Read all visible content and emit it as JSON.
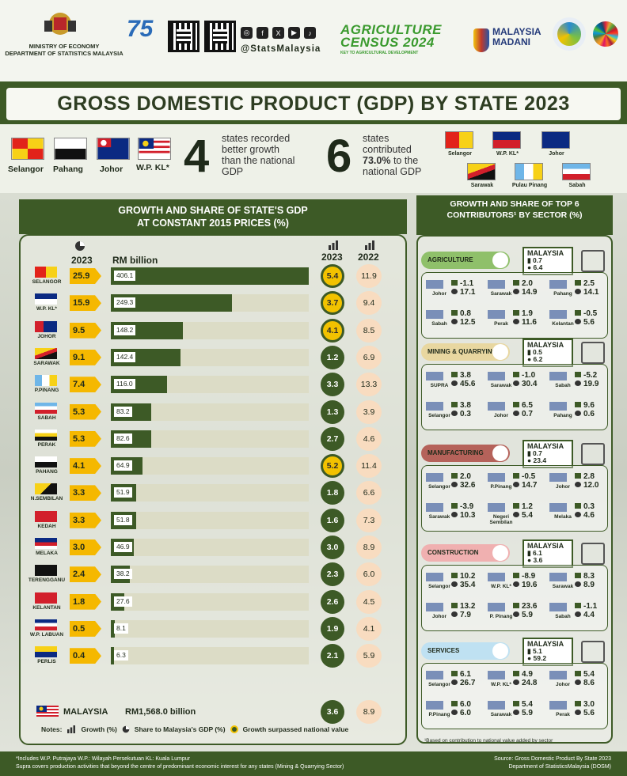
{
  "header": {
    "ministry": "MINISTRY OF ECONOMY",
    "department": "DEPARTMENT OF STATISTICS MALAYSIA",
    "dosm_logo": "75",
    "social_handle": "@StatsMalaysia",
    "census_line1": "AGRICULTURE",
    "census_line2": "CENSUS 2024",
    "census_tagline": "KEY TO AGRICULTURAL DEVELOPMENT",
    "madani_line1": "MALAYSIA",
    "madani_line2": "MADANI",
    "social_icons": [
      "instagram-icon",
      "facebook-icon",
      "x-icon",
      "youtube-icon",
      "tiktok-icon"
    ]
  },
  "title": "GROSS DOMESTIC PRODUCT (GDP) BY STATE 2023",
  "highlights": {
    "flags": [
      "Selangor",
      "Pahang",
      "Johor",
      "W.P. KL*"
    ],
    "better_count": "4",
    "better_text": "states recorded better growth than the national GDP",
    "contrib_count": "6",
    "contrib_text_pre": "states contributed",
    "contrib_pct": "73.0%",
    "contrib_text_post": "to the national GDP",
    "contrib_states": [
      "Selangor",
      "W.P. KL*",
      "Johor",
      "Sarawak",
      "Pulau Pinang",
      "Sabah"
    ]
  },
  "left_panel": {
    "title_line1": "GROWTH AND SHARE OF STATE'S GDP",
    "title_line2": "AT CONSTANT 2015 PRICES (%)",
    "col_share": "2023",
    "col_rm": "RM billion",
    "col_g23": "2023",
    "col_g22": "2022",
    "rows": [
      {
        "name": "SELANGOR",
        "share": "25.9",
        "rm": "406.1",
        "g23": "5.4",
        "g22": "11.9"
      },
      {
        "name": "W.P. KL*",
        "share": "15.9",
        "rm": "249.3",
        "g23": "3.7",
        "g22": "9.4"
      },
      {
        "name": "JOHOR",
        "share": "9.5",
        "rm": "148.2",
        "g23": "4.1",
        "g22": "8.5"
      },
      {
        "name": "SARAWAK",
        "share": "9.1",
        "rm": "142.4",
        "g23": "1.2",
        "g22": "6.9"
      },
      {
        "name": "P.PINANG",
        "share": "7.4",
        "rm": "116.0",
        "g23": "3.3",
        "g22": "13.3"
      },
      {
        "name": "SABAH",
        "share": "5.3",
        "rm": "83.2",
        "g23": "1.3",
        "g22": "3.9"
      },
      {
        "name": "PERAK",
        "share": "5.3",
        "rm": "82.6",
        "g23": "2.7",
        "g22": "4.6"
      },
      {
        "name": "PAHANG",
        "share": "4.1",
        "rm": "64.9",
        "g23": "5.2",
        "g22": "11.4"
      },
      {
        "name": "N.SEMBILAN",
        "share": "3.3",
        "rm": "51.9",
        "g23": "1.8",
        "g22": "6.6"
      },
      {
        "name": "KEDAH",
        "share": "3.3",
        "rm": "51.8",
        "g23": "1.6",
        "g22": "7.3"
      },
      {
        "name": "MELAKA",
        "share": "3.0",
        "rm": "46.9",
        "g23": "3.0",
        "g22": "8.9"
      },
      {
        "name": "TERENGGANU",
        "share": "2.4",
        "rm": "38.2",
        "g23": "2.3",
        "g22": "6.0"
      },
      {
        "name": "KELANTAN",
        "share": "1.8",
        "rm": "27.6",
        "g23": "2.6",
        "g22": "4.5"
      },
      {
        "name": "W.P. LABUAN",
        "share": "0.5",
        "rm": "8.1",
        "g23": "1.9",
        "g22": "4.1"
      },
      {
        "name": "PERLIS",
        "share": "0.4",
        "rm": "6.3",
        "g23": "2.1",
        "g22": "5.9"
      }
    ],
    "malaysia_label": "MALAYSIA",
    "malaysia_total": "RM1,568.0  billion",
    "malaysia_g23": "3.6",
    "malaysia_g22": "8.9",
    "notes_label": "Notes:",
    "note_growth": "Growth (%)",
    "note_share": "Share to Malaysia's GDP (%)",
    "note_surpassed": "Growth surpassed national value"
  },
  "right_panel": {
    "title": "GROWTH AND SHARE OF TOP 6 CONTRIBUTORS¹ BY SECTOR (%)",
    "footnote": "¹Based on contribution to national value added by sector",
    "sectors": [
      {
        "name": "AGRICULTURE",
        "color": "#8fc06a",
        "my_label": "MALAYSIA",
        "my_g": "0.7",
        "my_s": "6.4",
        "states": [
          [
            "Johor",
            "-1.1",
            "17.1"
          ],
          [
            "Sarawak",
            "2.0",
            "14.9"
          ],
          [
            "Pahang",
            "2.5",
            "14.1"
          ],
          [
            "Sabah",
            "0.8",
            "12.5"
          ],
          [
            "Perak",
            "1.9",
            "11.6"
          ],
          [
            "Kelantan",
            "-0.5",
            "5.6"
          ]
        ]
      },
      {
        "name": "MINING & QUARRYING",
        "color": "#e8d7a0",
        "my_label": "MALAYSIA",
        "my_g": "0.5",
        "my_s": "6.2",
        "states": [
          [
            "SUPRA",
            "3.8",
            "45.6"
          ],
          [
            "Sarawak",
            "-1.0",
            "30.4"
          ],
          [
            "Sabah",
            "-5.2",
            "19.9"
          ],
          [
            "Selangor",
            "3.8",
            "0.3"
          ],
          [
            "Johor",
            "6.5",
            "0.7"
          ],
          [
            "Pahang",
            "9.6",
            "0.6"
          ]
        ]
      },
      {
        "name": "MANUFACTURING",
        "color": "#b5625a",
        "my_label": "MALAYSIA",
        "my_g": "0.7",
        "my_s": "23.4",
        "states": [
          [
            "Selangor",
            "2.0",
            "32.6"
          ],
          [
            "P.Pinang",
            "-0.5",
            "14.7"
          ],
          [
            "Johor",
            "2.8",
            "12.0"
          ],
          [
            "Sarawak",
            "-3.9",
            "10.3"
          ],
          [
            "Negeri Sembilan",
            "1.2",
            "5.4"
          ],
          [
            "Melaka",
            "0.3",
            "4.6"
          ]
        ]
      },
      {
        "name": "CONSTRUCTION",
        "color": "#f0b0b0",
        "my_label": "MALAYSIA",
        "my_g": "6.1",
        "my_s": "3.6",
        "states": [
          [
            "Selangor",
            "10.2",
            "35.4"
          ],
          [
            "W.P. KL*",
            "-8.9",
            "19.6"
          ],
          [
            "Sarawak",
            "8.3",
            "8.9"
          ],
          [
            "Johor",
            "13.2",
            "7.9"
          ],
          [
            "P. Pinang",
            "23.6",
            "5.9"
          ],
          [
            "Sabah",
            "-1.1",
            "4.4"
          ]
        ]
      },
      {
        "name": "SERVICES",
        "color": "#bfe1f2",
        "my_label": "MALAYSIA",
        "my_g": "5.1",
        "my_s": "59.2",
        "states": [
          [
            "Selangor",
            "6.1",
            "26.7"
          ],
          [
            "W.P. KL*",
            "4.9",
            "24.8"
          ],
          [
            "Johor",
            "5.4",
            "8.6"
          ],
          [
            "P.Pinang",
            "6.0",
            "6.0"
          ],
          [
            "Sarawak",
            "5.4",
            "5.9"
          ],
          [
            "Perak",
            "3.0",
            "5.6"
          ]
        ]
      }
    ]
  },
  "footer": {
    "left1": "*Includes W.P. Putrajaya    W.P.: Wilayah Persekutuan    KL: Kuala Lumpur",
    "left2": "Supra covers production activities that beyond the centre of predominant economic interest for any states (Mining & Quarrying Sector)",
    "right1": "Source: Gross Domestic Product By State 2023",
    "right2": "Department of StatisticsMalaysia (DOSM)"
  }
}
